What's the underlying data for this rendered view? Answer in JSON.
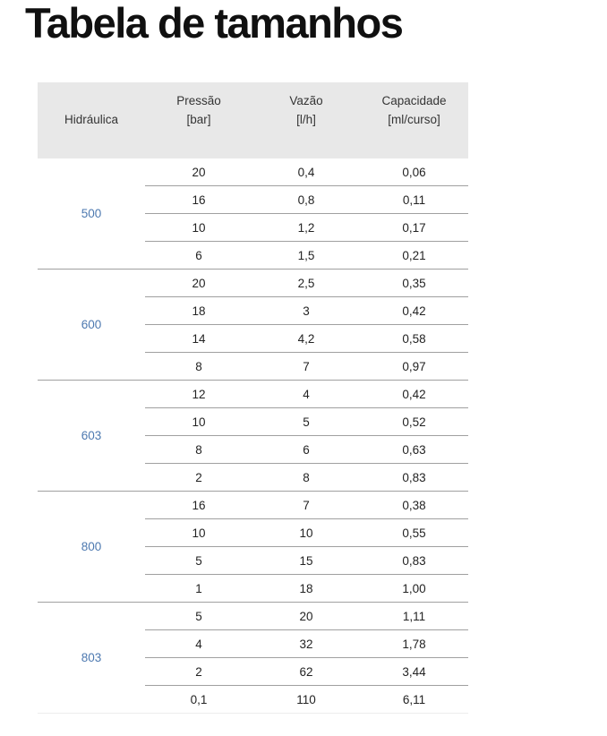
{
  "page": {
    "title": "Tabela de tamanhos"
  },
  "colors": {
    "header_background": "#e8e8e8",
    "group_label_blue": "#4d79b0",
    "row_line_gray": "#a0a0a0",
    "table_end_line": "#ededed",
    "title_text": "#101010",
    "body_text": "#232323"
  },
  "chart_data": {
    "type": "table",
    "title": "Tabela de tamanhos",
    "columns": [
      "Hidráulica",
      "Pressão [bar]",
      "Vazão [l/h]",
      "Capacidade [ml/curso]"
    ],
    "headers": [
      {
        "line1": "",
        "line2": "Hidráulica"
      },
      {
        "line1": "Pressão",
        "line2": "[bar]"
      },
      {
        "line1": "Vazão",
        "line2": "[l/h]"
      },
      {
        "line1": "Capacidade",
        "line2": "[ml/curso]"
      }
    ],
    "groups": [
      {
        "hidraulica": "500",
        "rows": [
          [
            "20",
            "0,4",
            "0,06"
          ],
          [
            "16",
            "0,8",
            "0,11"
          ],
          [
            "10",
            "1,2",
            "0,17"
          ],
          [
            "6",
            "1,5",
            "0,21"
          ]
        ]
      },
      {
        "hidraulica": "600",
        "rows": [
          [
            "20",
            "2,5",
            "0,35"
          ],
          [
            "18",
            "3",
            "0,42"
          ],
          [
            "14",
            "4,2",
            "0,58"
          ],
          [
            "8",
            "7",
            "0,97"
          ]
        ]
      },
      {
        "hidraulica": "603",
        "rows": [
          [
            "12",
            "4",
            "0,42"
          ],
          [
            "10",
            "5",
            "0,52"
          ],
          [
            "8",
            "6",
            "0,63"
          ],
          [
            "2",
            "8",
            "0,83"
          ]
        ]
      },
      {
        "hidraulica": "800",
        "rows": [
          [
            "16",
            "7",
            "0,38"
          ],
          [
            "10",
            "10",
            "0,55"
          ],
          [
            "5",
            "15",
            "0,83"
          ],
          [
            "1",
            "18",
            "1,00"
          ]
        ]
      },
      {
        "hidraulica": "803",
        "rows": [
          [
            "5",
            "20",
            "1,11"
          ],
          [
            "4",
            "32",
            "1,78"
          ],
          [
            "2",
            "62",
            "3,44"
          ],
          [
            "0,1",
            "110",
            "6,11"
          ]
        ]
      }
    ]
  }
}
